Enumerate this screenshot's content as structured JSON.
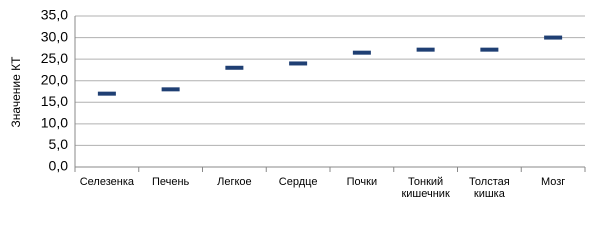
{
  "chart_data": {
    "type": "scatter",
    "marker": "dash",
    "y_label": "Значение КТ",
    "categories": [
      "Селезенка",
      "Печень",
      "Легкое",
      "Сердце",
      "Почки",
      "Тонкий кишечник",
      "Толстая кишка",
      "Мозг"
    ],
    "values": [
      17,
      18,
      23,
      24,
      26.5,
      27.2,
      27.2,
      30
    ],
    "color": "#1f3f73",
    "ylim": [
      0,
      35
    ],
    "yticks": [
      {
        "value": 0,
        "label": "0,0"
      },
      {
        "value": 5,
        "label": "5,0"
      },
      {
        "value": 10,
        "label": "10,0"
      },
      {
        "value": 15,
        "label": "15,0"
      },
      {
        "value": 20,
        "label": "20,0"
      },
      {
        "value": 25,
        "label": "25,0"
      },
      {
        "value": 30,
        "label": "30,0"
      },
      {
        "value": 35,
        "label": "35,0"
      }
    ],
    "grid": true
  }
}
